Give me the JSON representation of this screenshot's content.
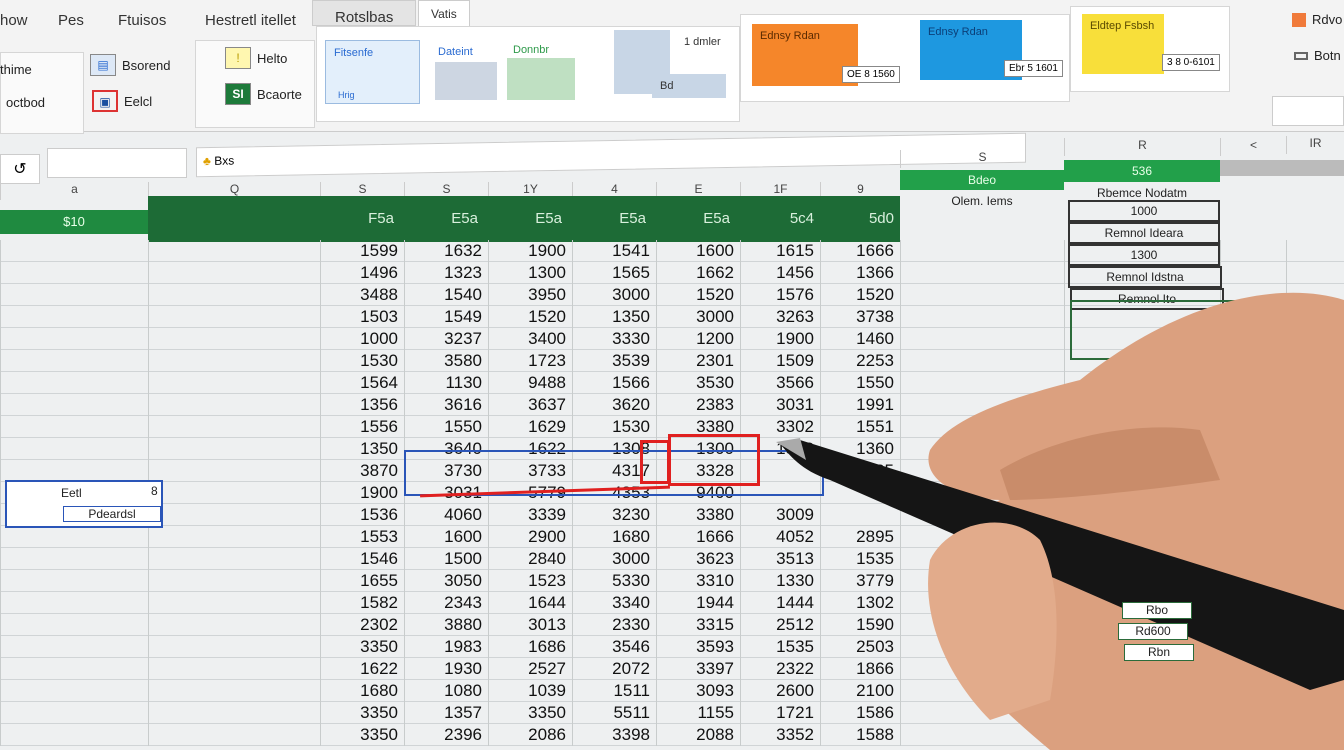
{
  "ribbon": {
    "tabs": [
      "how",
      "Pes",
      "Ftuisos",
      "Hestretl itellet",
      "Rotslbas",
      "Vatis"
    ],
    "left_buttons": [
      "thime",
      "octbod",
      "Bsorend",
      "Eelcl",
      "Helto",
      "Bcaorte"
    ],
    "styles": [
      "Fitsenfe",
      "Dateint",
      "Donnbr",
      "Hrig",
      "1 dmler",
      "Bd"
    ],
    "color_cards": [
      {
        "label": "Ednsy Rdan",
        "badge": "OE 8 1560",
        "color": "#f5862a"
      },
      {
        "label": "Ednsy Rdan",
        "badge": "Ebr 5 1601",
        "color": "#1e98e0"
      },
      {
        "label": "Eldtep Fsbsh",
        "badge": "3 8 0-6101",
        "color": "#f8df3a"
      }
    ],
    "right_buttons": [
      "Rdvo",
      "Botn"
    ]
  },
  "formula": {
    "name_box": "",
    "content": "Bxs"
  },
  "columns": [
    "a",
    "Q",
    "S",
    "S",
    "1Y",
    "4",
    "E",
    "1F",
    "9",
    "S",
    "R",
    "<",
    "IR"
  ],
  "left_header": "$10",
  "data_headers": [
    "F5a",
    "E5a",
    "E5a",
    "E5a",
    "E5a",
    "5c4",
    "5d0"
  ],
  "rows": [
    [
      "1599",
      "1632",
      "1900",
      "1541",
      "1600",
      "1615",
      "1666"
    ],
    [
      "1496",
      "1323",
      "1300",
      "1565",
      "1662",
      "1456",
      "1366"
    ],
    [
      "3488",
      "1540",
      "3950",
      "3000",
      "1520",
      "1576",
      "1520"
    ],
    [
      "1503",
      "1549",
      "1520",
      "1350",
      "3000",
      "3263",
      "3738"
    ],
    [
      "1000",
      "3237",
      "3400",
      "3330",
      "1200",
      "1900",
      "1460"
    ],
    [
      "1530",
      "3580",
      "1723",
      "3539",
      "2301",
      "1509",
      "2253"
    ],
    [
      "1564",
      "1130",
      "9488",
      "1566",
      "3530",
      "3566",
      "1550"
    ],
    [
      "1356",
      "3616",
      "3637",
      "3620",
      "2383",
      "3031",
      "1991"
    ],
    [
      "1556",
      "1550",
      "1629",
      "1530",
      "3380",
      "3302",
      "1551"
    ],
    [
      "1350",
      "3640",
      "1622",
      "1308",
      "1300",
      "1588",
      "1360"
    ],
    [
      "3870",
      "3730",
      "3733",
      "4317",
      "3328",
      "",
      "1935"
    ],
    [
      "1900",
      "3031",
      "5779",
      "4353",
      "9400",
      "",
      ""
    ],
    [
      "1536",
      "4060",
      "3339",
      "3230",
      "3380",
      "3009",
      ""
    ],
    [
      "1553",
      "1600",
      "2900",
      "1680",
      "1666",
      "4052",
      "2895"
    ],
    [
      "1546",
      "1500",
      "2840",
      "3000",
      "3623",
      "3513",
      "1535"
    ],
    [
      "1655",
      "3050",
      "1523",
      "5330",
      "3310",
      "1330",
      "3779"
    ],
    [
      "1582",
      "2343",
      "1644",
      "3340",
      "1944",
      "1444",
      "1302"
    ],
    [
      "2302",
      "3880",
      "3013",
      "2330",
      "3315",
      "2512",
      "1590"
    ],
    [
      "3350",
      "1983",
      "1686",
      "3546",
      "3593",
      "1535",
      "2503"
    ],
    [
      "1622",
      "1930",
      "2527",
      "2072",
      "3397",
      "2322",
      "1866"
    ],
    [
      "1680",
      "1080",
      "1039",
      "1511",
      "3093",
      "2600",
      "2100"
    ],
    [
      "3350",
      "1357",
      "3350",
      "5511",
      "1155",
      "1721",
      "1586"
    ],
    [
      "3350",
      "2396",
      "2086",
      "3398",
      "2088",
      "3352",
      "1588"
    ]
  ],
  "left_box": {
    "top": "Eetl",
    "top_right": "8",
    "bottom": "Pdeardsl"
  },
  "side_panel": {
    "header1": "Bdeo",
    "label1": "Olem. Iems",
    "header2": "536",
    "items": [
      "Rbemce Nodatm",
      "1000",
      "Remnol Ideara",
      "1300",
      "Remnol Idstna",
      "Remnol Ito"
    ],
    "bottom_items": [
      "Rbo",
      "Rd600",
      "Rbn"
    ]
  }
}
